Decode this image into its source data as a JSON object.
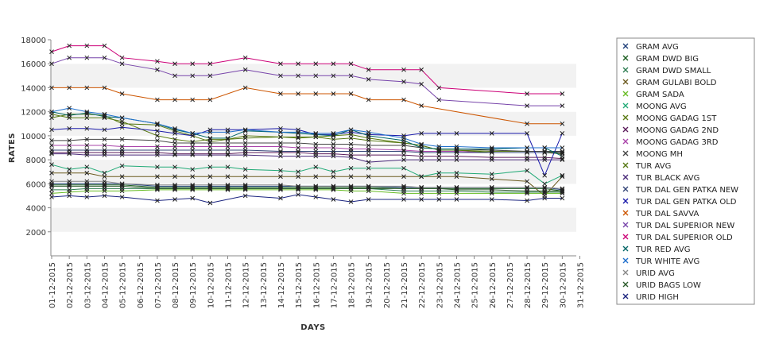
{
  "chart_data": {
    "type": "line",
    "title": "",
    "xlabel": "DAYS",
    "ylabel": "RATES",
    "ylim": [
      0,
      18000
    ],
    "yticks": [
      2000,
      4000,
      6000,
      8000,
      10000,
      12000,
      14000,
      16000,
      18000
    ],
    "grid": "alternating horizontal bands",
    "legend_position": "right",
    "marker": "x",
    "x": [
      "01-12-2015",
      "02-12-2015",
      "03-12-2015",
      "04-12-2015",
      "05-12-2015",
      "06-12-2015",
      "07-12-2015",
      "08-12-2015",
      "09-12-2015",
      "10-12-2015",
      "11-12-2015",
      "12-12-2015",
      "13-12-2015",
      "14-12-2015",
      "15-12-2015",
      "16-12-2015",
      "17-12-2015",
      "18-12-2015",
      "19-12-2015",
      "20-12-2015",
      "21-12-2015",
      "22-12-2015",
      "23-12-2015",
      "24-12-2015",
      "25-12-2015",
      "26-12-2015",
      "27-12-2015",
      "28-12-2015",
      "29-12-2015",
      "30-12-2015",
      "31-12-2015"
    ],
    "series": [
      {
        "name": "GRAM AVG",
        "color": "#1f3f7a",
        "values": [
          6000,
          6000,
          6000,
          6000,
          6000,
          null,
          5800,
          5800,
          5800,
          5800,
          5800,
          5800,
          null,
          5800,
          5800,
          5800,
          5800,
          5800,
          5800,
          null,
          5700,
          5700,
          5700,
          5700,
          null,
          5700,
          null,
          5700,
          5700,
          5500,
          null
        ]
      },
      {
        "name": "GRAM DWD BIG",
        "color": "#1b5e20",
        "values": [
          5900,
          5900,
          5900,
          5900,
          5900,
          null,
          5700,
          5700,
          5700,
          5700,
          5700,
          5700,
          null,
          5700,
          5700,
          5700,
          5700,
          5700,
          5700,
          null,
          5600,
          5600,
          5600,
          5600,
          null,
          5600,
          null,
          5600,
          5600,
          5400,
          null
        ]
      },
      {
        "name": "GRAM DWD SMALL",
        "color": "#2e7d52",
        "values": [
          5500,
          5500,
          5600,
          5600,
          5600,
          null,
          5600,
          5600,
          5600,
          5600,
          5600,
          5600,
          null,
          5600,
          5600,
          5600,
          5600,
          5600,
          5600,
          null,
          5400,
          5400,
          5400,
          5400,
          null,
          5300,
          null,
          5300,
          5300,
          5300,
          null
        ]
      },
      {
        "name": "GRAM GULABI BOLD",
        "color": "#6b5a1e",
        "values": [
          6900,
          6900,
          6900,
          6600,
          6600,
          null,
          6600,
          6600,
          6600,
          6600,
          6600,
          6600,
          null,
          6600,
          6600,
          6600,
          6600,
          6600,
          6600,
          null,
          6600,
          6600,
          6600,
          6600,
          null,
          6400,
          null,
          6200,
          5000,
          6600,
          null
        ]
      },
      {
        "name": "GRAM SADA",
        "color": "#66bb22",
        "values": [
          5200,
          5300,
          5400,
          5400,
          5400,
          null,
          5500,
          5500,
          5500,
          5500,
          5500,
          5500,
          null,
          5500,
          5500,
          5500,
          5500,
          5400,
          5400,
          null,
          5200,
          5200,
          5200,
          5200,
          null,
          5200,
          null,
          5200,
          5200,
          5200,
          null
        ]
      },
      {
        "name": "MOONG AVG",
        "color": "#22aa77",
        "values": [
          7600,
          7200,
          7400,
          6900,
          7500,
          null,
          7400,
          7400,
          7200,
          7400,
          7400,
          7200,
          null,
          7100,
          7000,
          7400,
          7000,
          7300,
          7300,
          null,
          7300,
          6600,
          6900,
          6900,
          null,
          6800,
          null,
          7100,
          6000,
          6700,
          null
        ]
      },
      {
        "name": "MOONG GADAG 1ST",
        "color": "#5a7a10",
        "values": [
          11800,
          11500,
          11500,
          11500,
          11200,
          null,
          10000,
          9700,
          9500,
          9700,
          9700,
          10000,
          null,
          9900,
          9800,
          9900,
          10000,
          10100,
          9800,
          null,
          9400,
          9200,
          8800,
          8800,
          null,
          8700,
          null,
          8700,
          8700,
          8600,
          null
        ]
      },
      {
        "name": "MOONG GADAG 2ND",
        "color": "#5a1a5a",
        "values": [
          8600,
          8600,
          8600,
          8600,
          8600,
          null,
          8600,
          8500,
          8500,
          8500,
          8500,
          8600,
          null,
          8600,
          8600,
          8500,
          8500,
          8400,
          8400,
          null,
          8400,
          8300,
          8300,
          8300,
          null,
          8200,
          null,
          8200,
          8200,
          8100,
          null
        ]
      },
      {
        "name": "MOONG GADAG 3RD",
        "color": "#aa44aa",
        "values": [
          9200,
          9200,
          9200,
          9200,
          9100,
          null,
          9100,
          9100,
          9100,
          9100,
          9100,
          9100,
          null,
          9100,
          9000,
          9000,
          9000,
          8900,
          8900,
          null,
          8800,
          8700,
          8700,
          8700,
          null,
          8600,
          null,
          8600,
          8600,
          8500,
          null
        ]
      },
      {
        "name": "MOONG MH",
        "color": "#444444",
        "values": [
          9600,
          9600,
          9700,
          9700,
          9700,
          null,
          9600,
          9400,
          9400,
          9400,
          9400,
          9400,
          null,
          9400,
          9400,
          9300,
          9300,
          9300,
          9200,
          null,
          9200,
          9000,
          8900,
          8900,
          null,
          8800,
          null,
          8700,
          8700,
          8700,
          null
        ]
      },
      {
        "name": "TUR AVG",
        "color": "#557711",
        "values": [
          11500,
          11800,
          11800,
          11700,
          11000,
          null,
          10900,
          10400,
          10000,
          9500,
          9700,
          9800,
          null,
          9900,
          9900,
          9900,
          9700,
          9800,
          9600,
          null,
          9400,
          9200,
          8800,
          8800,
          null,
          8600,
          null,
          8600,
          8600,
          8500,
          null
        ]
      },
      {
        "name": "TUR BLACK AVG",
        "color": "#4a2a7a",
        "values": [
          8500,
          8500,
          8400,
          8400,
          8400,
          null,
          8400,
          8400,
          8400,
          8400,
          8400,
          8400,
          null,
          8300,
          8300,
          8300,
          8300,
          8200,
          7800,
          null,
          8000,
          8000,
          8000,
          8000,
          null,
          8000,
          null,
          8000,
          8000,
          8000,
          null
        ]
      },
      {
        "name": "TUR DAL GEN PATKA NEW",
        "color": "#334477",
        "values": [
          8800,
          8800,
          8800,
          8800,
          8800,
          null,
          8800,
          8800,
          8800,
          8800,
          8800,
          8800,
          null,
          8700,
          8700,
          8700,
          8700,
          8700,
          8700,
          null,
          8700,
          8600,
          8600,
          8600,
          null,
          8600,
          null,
          8600,
          8600,
          8600,
          null
        ]
      },
      {
        "name": "TUR DAL GEN PATKA OLD",
        "color": "#1a1aaa",
        "values": [
          10500,
          10600,
          10600,
          10500,
          10700,
          null,
          10400,
          10200,
          10000,
          10500,
          10500,
          10500,
          null,
          10600,
          10500,
          10100,
          10100,
          10300,
          10100,
          null,
          10000,
          10200,
          10200,
          10200,
          null,
          10200,
          null,
          10200,
          6700,
          10200,
          null
        ]
      },
      {
        "name": "TUR DAL SAVVA",
        "color": "#cc5500",
        "values": [
          14000,
          14000,
          14000,
          14000,
          13500,
          null,
          13000,
          13000,
          13000,
          13000,
          null,
          14000,
          null,
          13500,
          13500,
          13500,
          13500,
          13500,
          13000,
          null,
          13000,
          12500,
          null,
          null,
          null,
          null,
          null,
          11000,
          null,
          11000,
          null
        ]
      },
      {
        "name": "TUR DAL SUPERIOR NEW",
        "color": "#7744aa",
        "values": [
          16000,
          16500,
          16500,
          16500,
          16000,
          null,
          15500,
          15000,
          15000,
          15000,
          null,
          15500,
          null,
          15000,
          15000,
          15000,
          15000,
          15000,
          14700,
          null,
          14500,
          14300,
          13000,
          null,
          null,
          null,
          null,
          12500,
          null,
          12500,
          null
        ]
      },
      {
        "name": "TUR DAL SUPERIOR OLD",
        "color": "#cc0077",
        "values": [
          17000,
          17500,
          17500,
          17500,
          16500,
          null,
          16200,
          16000,
          16000,
          16000,
          null,
          16500,
          null,
          16000,
          16000,
          16000,
          16000,
          16000,
          15500,
          null,
          15500,
          15500,
          14000,
          null,
          null,
          null,
          null,
          13500,
          null,
          13500,
          null
        ]
      },
      {
        "name": "TUR RED AVG",
        "color": "#006666",
        "values": [
          12000,
          11700,
          11900,
          11600,
          11500,
          null,
          11000,
          10500,
          10200,
          9800,
          9800,
          10400,
          null,
          10300,
          10200,
          10100,
          10000,
          10500,
          10000,
          null,
          9600,
          9000,
          8900,
          8900,
          null,
          8900,
          null,
          9000,
          9000,
          8300,
          null
        ]
      },
      {
        "name": "TUR WHITE AVG",
        "color": "#1f6fcc",
        "values": [
          12000,
          12300,
          12000,
          11800,
          11500,
          null,
          11000,
          10600,
          10200,
          10300,
          10300,
          10500,
          null,
          10300,
          10300,
          10200,
          10200,
          10500,
          10300,
          null,
          9800,
          9300,
          9100,
          9100,
          null,
          9000,
          null,
          9000,
          9000,
          9000,
          null
        ]
      },
      {
        "name": "URID AVG",
        "color": "#888888",
        "values": [
          6200,
          6200,
          6200,
          6200,
          6000,
          null,
          5900,
          5900,
          5900,
          5900,
          5900,
          5900,
          null,
          5900,
          5800,
          5800,
          5800,
          5800,
          5800,
          null,
          5800,
          5700,
          5700,
          5700,
          null,
          5700,
          null,
          5700,
          5700,
          5600,
          null
        ]
      },
      {
        "name": "URID BAGS LOW",
        "color": "#2a5a2a",
        "values": [
          5800,
          5800,
          5800,
          5800,
          5800,
          null,
          5600,
          5600,
          5600,
          5600,
          5600,
          5600,
          null,
          5600,
          5600,
          5600,
          5600,
          5600,
          5600,
          null,
          5600,
          5600,
          5600,
          5500,
          null,
          5500,
          null,
          5400,
          5400,
          5400,
          null
        ]
      },
      {
        "name": "URID HIGH",
        "color": "#1a237e",
        "values": [
          4900,
          5000,
          4900,
          5000,
          4900,
          null,
          4600,
          4700,
          4800,
          4400,
          null,
          5000,
          null,
          4800,
          5100,
          4900,
          4700,
          4500,
          4700,
          null,
          4700,
          4700,
          4700,
          4700,
          null,
          4700,
          null,
          4600,
          4800,
          4800,
          null
        ]
      }
    ]
  }
}
